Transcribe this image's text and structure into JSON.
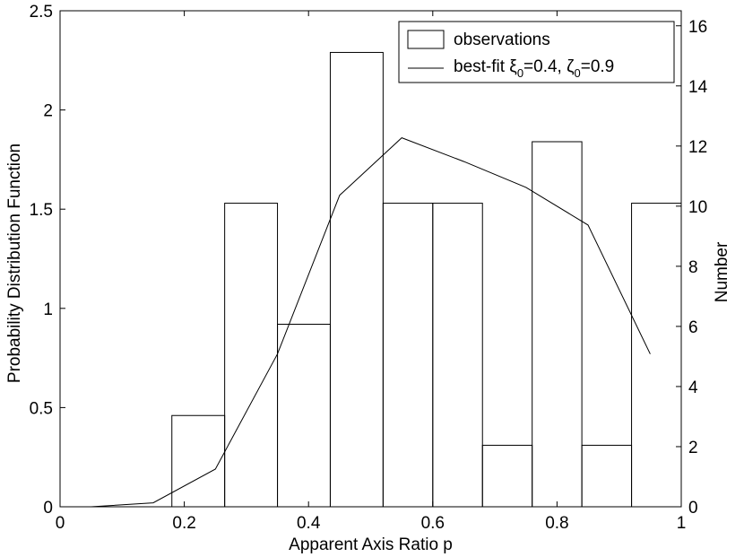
{
  "chart_data": {
    "type": "bar",
    "xlabel": "Apparent Axis Ratio p",
    "ylabel": "Probability Distribution Function",
    "y2label": "Number",
    "xlim": [
      0,
      1
    ],
    "ylim": [
      0,
      2.5
    ],
    "y2lim": [
      0,
      16.5
    ],
    "xticks": [
      "0",
      "0.2",
      "0.4",
      "0.6",
      "0.8",
      "1"
    ],
    "yticks": [
      "0",
      "0.5",
      "1",
      "1.5",
      "2",
      "2.5"
    ],
    "y2ticks": [
      "0",
      "2",
      "4",
      "6",
      "8",
      "10",
      "12",
      "14",
      "16"
    ],
    "bins": [
      {
        "x0": 0.18,
        "x1": 0.265,
        "pdf": 0.46,
        "count": 3
      },
      {
        "x0": 0.265,
        "x1": 0.35,
        "pdf": 1.53,
        "count": 10
      },
      {
        "x0": 0.35,
        "x1": 0.435,
        "pdf": 0.92,
        "count": 6
      },
      {
        "x0": 0.435,
        "x1": 0.52,
        "pdf": 2.29,
        "count": 15
      },
      {
        "x0": 0.52,
        "x1": 0.6,
        "pdf": 1.53,
        "count": 10
      },
      {
        "x0": 0.6,
        "x1": 0.68,
        "pdf": 1.53,
        "count": 10
      },
      {
        "x0": 0.68,
        "x1": 0.76,
        "pdf": 0.31,
        "count": 2
      },
      {
        "x0": 0.76,
        "x1": 0.84,
        "pdf": 1.84,
        "count": 12
      },
      {
        "x0": 0.84,
        "x1": 0.92,
        "pdf": 0.31,
        "count": 2
      },
      {
        "x0": 0.92,
        "x1": 1.0,
        "pdf": 1.53,
        "count": 10
      }
    ],
    "series": [
      {
        "name": "best-fit ξ0=0.4, ζ0=0.9",
        "x": [
          0.05,
          0.15,
          0.25,
          0.35,
          0.45,
          0.55,
          0.65,
          0.75,
          0.85,
          0.95
        ],
        "y": [
          0.0,
          0.02,
          0.19,
          0.77,
          1.57,
          1.86,
          1.74,
          1.61,
          1.42,
          0.77
        ]
      }
    ],
    "legend": {
      "placement": "top-right",
      "entries": [
        {
          "label": "observations",
          "kind": "box"
        },
        {
          "label_main": "best-fit ξ",
          "sub1": "0",
          "mid": "=0.4, ζ",
          "sub2": "0",
          "tail": "=0.9",
          "kind": "line"
        }
      ]
    },
    "grid": false
  }
}
